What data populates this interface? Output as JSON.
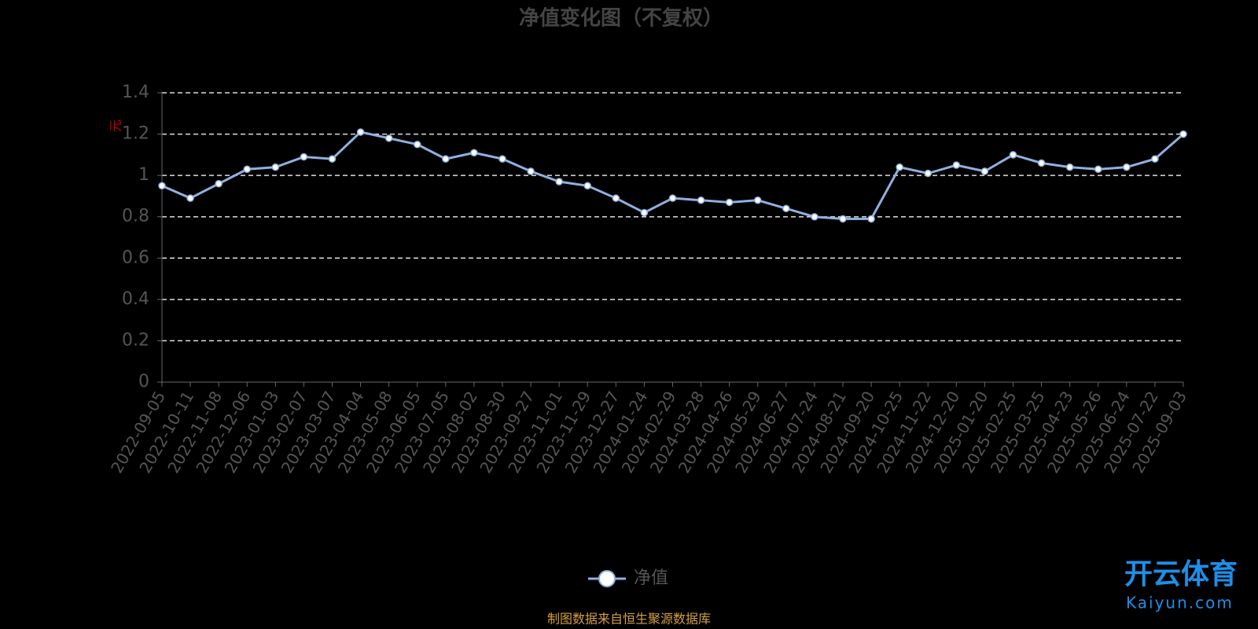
{
  "chart_data": {
    "type": "line",
    "title": "净值变化图（不复权）",
    "y_label": "元",
    "categories": [
      "2022-09-05",
      "2022-10-11",
      "2022-11-08",
      "2022-12-06",
      "2023-01-03",
      "2023-02-07",
      "2023-03-07",
      "2023-04-04",
      "2023-05-08",
      "2023-06-05",
      "2023-07-05",
      "2023-08-02",
      "2023-08-30",
      "2023-09-27",
      "2023-11-01",
      "2023-11-29",
      "2023-12-27",
      "2024-01-24",
      "2024-02-29",
      "2024-03-28",
      "2024-04-26",
      "2024-05-29",
      "2024-06-27",
      "2024-07-24",
      "2024-08-21",
      "2024-09-20",
      "2024-10-25",
      "2024-11-22",
      "2024-12-20",
      "2025-01-20",
      "2025-02-25",
      "2025-03-25",
      "2025-04-23",
      "2025-05-26",
      "2025-06-24",
      "2025-07-22",
      "2025-09-03"
    ],
    "series": [
      {
        "name": "净值",
        "color": "#8fb0e0",
        "values": [
          0.95,
          0.89,
          0.96,
          1.03,
          1.04,
          1.09,
          1.08,
          1.21,
          1.18,
          1.15,
          1.08,
          1.11,
          1.08,
          1.02,
          0.97,
          0.95,
          0.89,
          0.82,
          0.89,
          0.88,
          0.87,
          0.88,
          0.84,
          0.8,
          0.79,
          0.79,
          1.04,
          1.01,
          1.05,
          1.02,
          1.1,
          1.06,
          1.04,
          1.03,
          1.04,
          1.08,
          1.2
        ]
      }
    ],
    "ylim": [
      0,
      1.4
    ],
    "yticks": [
      0,
      0.2,
      0.4,
      0.6,
      0.8,
      1,
      1.2,
      1.4
    ],
    "grid": true,
    "source": "制图数据来自恒生聚源数据库",
    "watermark": {
      "name": "开云体育",
      "site": "Kaiyun.com"
    }
  }
}
